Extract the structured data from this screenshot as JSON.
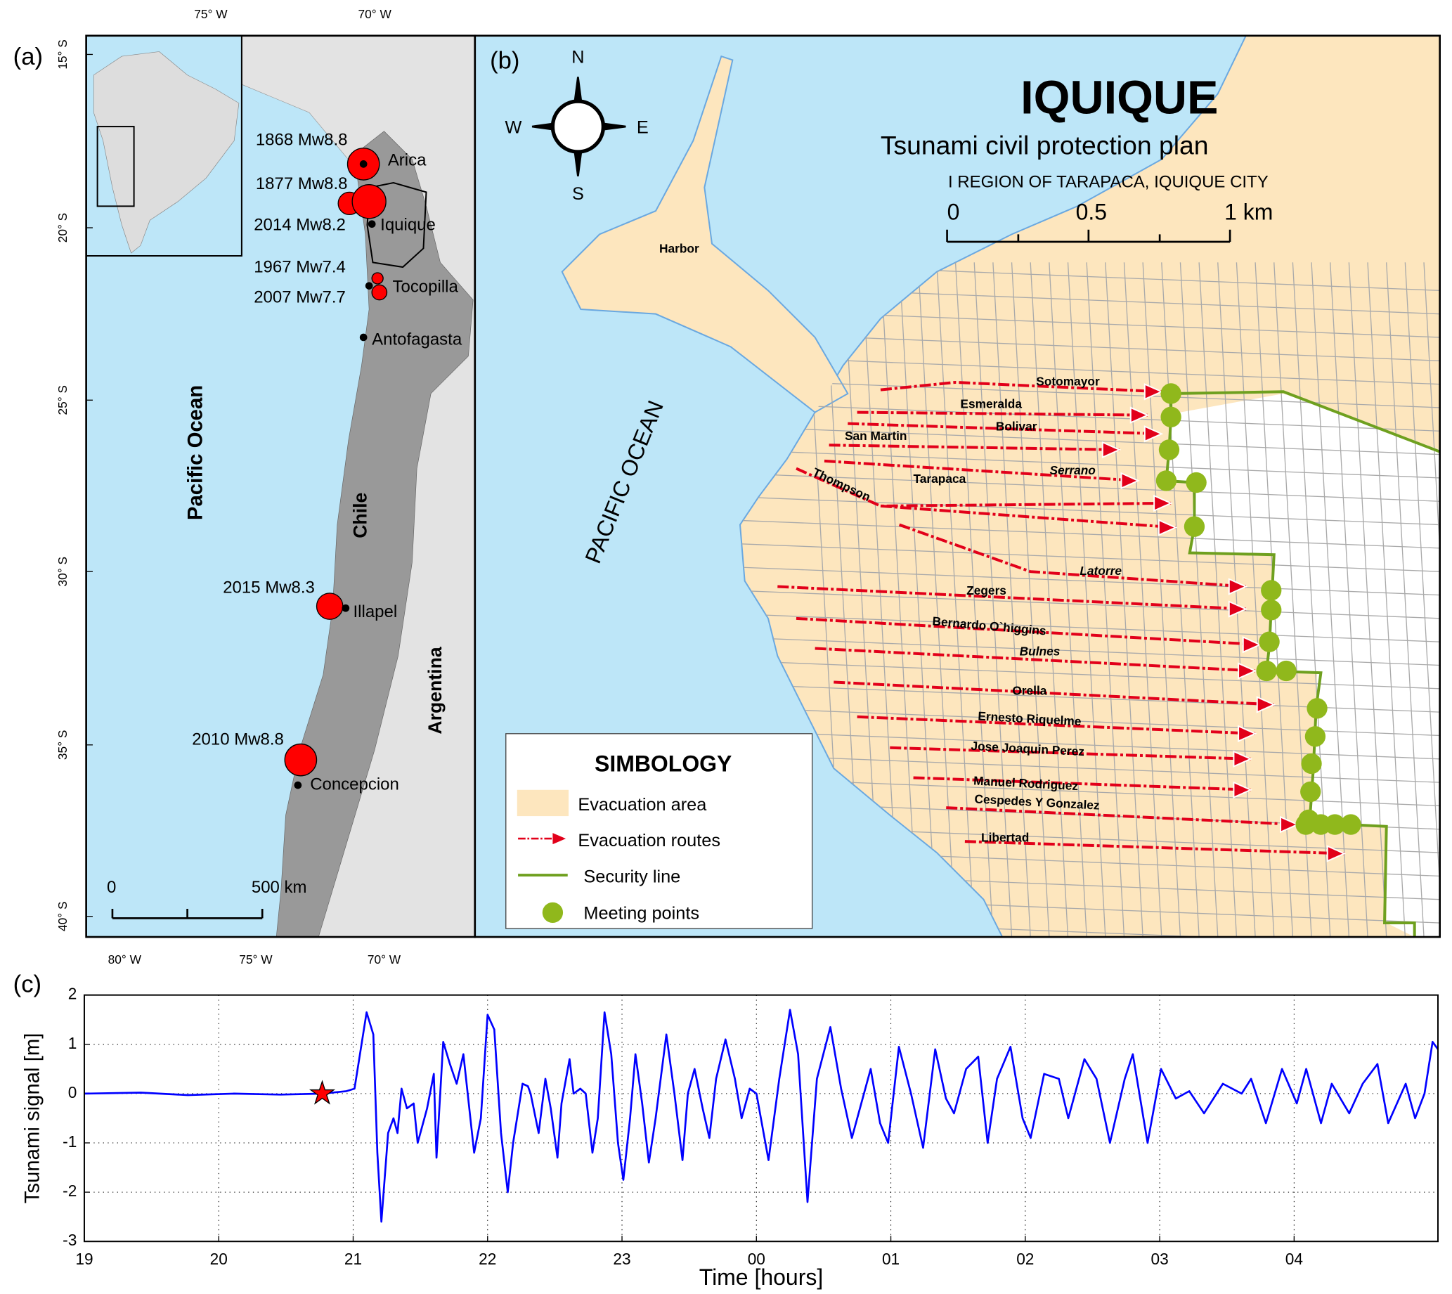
{
  "panel_a": {
    "label": "(a)",
    "lon_ticks_top": [
      "75° W",
      "70° W"
    ],
    "lon_ticks_bottom": [
      "80° W",
      "75° W",
      "70° W"
    ],
    "lat_ticks": [
      "15° S",
      "20° S",
      "25° S",
      "30° S",
      "35° S",
      "40° S"
    ],
    "ocean": "Pacific Ocean",
    "countries": [
      "Chile",
      "Argentina"
    ],
    "earthquakes": [
      "1868 Mw8.8",
      "1877 Mw8.8",
      "2014 Mw8.2",
      "1967 Mw7.4",
      "2007 Mw7.7",
      "2015 Mw8.3",
      "2010 Mw8.8"
    ],
    "cities": [
      "Arica",
      "Iquique",
      "Tocopilla",
      "Antofagasta",
      "Illapel",
      "Concepcion"
    ],
    "scale": [
      "0",
      "500 km"
    ]
  },
  "panel_b": {
    "label": "(b)",
    "compass": [
      "N",
      "E",
      "S",
      "W"
    ],
    "title": "IQUIQUE",
    "subtitle": "Tsunami civil protection plan",
    "region": "I REGION OF TARAPACA, IQUIQUE CITY",
    "scale": [
      "0",
      "0.5",
      "1 km"
    ],
    "harbor": "Harbor",
    "ocean": "PACIFIC OCEAN",
    "streets": [
      "Sotomayor",
      "Esmeralda",
      "Bolivar",
      "San Martin",
      "Serrano",
      "Tarapaca",
      "Thompson",
      "Latorre",
      "Zegers",
      "Bernardo O`higgins",
      "Bulnes",
      "Orella",
      "Ernesto Riquelme",
      "Jose Joaquin Perez",
      "Manuel Rodriguez",
      "Cespedes Y Gonzalez",
      "Libertad"
    ],
    "legend": {
      "title": "SIMBOLOGY",
      "items": [
        "Evacuation area",
        "Evacuation routes",
        "Security line",
        "Meeting points"
      ]
    }
  },
  "panel_c": {
    "label": "(c)"
  },
  "chart_data": {
    "type": "line",
    "x_label": "Time [hours]",
    "y_label": "Tsunami signal [m]",
    "color": "#0000ff",
    "grid": true,
    "xlim": [
      19,
      29.07
    ],
    "xticks": [
      19,
      20,
      21,
      22,
      23,
      {
        "value": 24,
        "label": "00"
      },
      {
        "value": 25,
        "label": "01"
      },
      {
        "value": 26,
        "label": "02"
      },
      {
        "value": 27,
        "label": "03"
      },
      {
        "value": 28,
        "label": "04"
      }
    ],
    "ylim": [
      -3,
      2
    ],
    "yticks": [
      -3,
      -2,
      -1,
      0,
      1,
      2
    ],
    "event_marker": {
      "x": 20.77,
      "y": 0,
      "color": "#ff0000"
    },
    "x": [
      19.0,
      19.42,
      19.77,
      20.11,
      20.46,
      20.77,
      20.95,
      21.01,
      21.1,
      21.15,
      21.18,
      21.21,
      21.26,
      21.3,
      21.33,
      21.36,
      21.4,
      21.45,
      21.48,
      21.55,
      21.6,
      21.62,
      21.67,
      21.72,
      21.77,
      21.82,
      21.86,
      21.9,
      21.95,
      22.0,
      22.05,
      22.1,
      22.15,
      22.19,
      22.26,
      22.3,
      22.32,
      22.38,
      22.43,
      22.47,
      22.52,
      22.55,
      22.61,
      22.64,
      22.69,
      22.73,
      22.78,
      22.82,
      22.87,
      22.92,
      22.97,
      23.01,
      23.06,
      23.1,
      23.15,
      23.2,
      23.25,
      23.33,
      23.39,
      23.45,
      23.49,
      23.54,
      23.6,
      23.65,
      23.7,
      23.77,
      23.84,
      23.89,
      23.95,
      24.0,
      24.09,
      24.17,
      24.25,
      24.31,
      24.38,
      24.45,
      24.55,
      24.63,
      24.71,
      24.8,
      24.85,
      24.92,
      24.98,
      25.06,
      25.15,
      25.24,
      25.33,
      25.41,
      25.47,
      25.56,
      25.65,
      25.72,
      25.79,
      25.89,
      25.98,
      26.04,
      26.14,
      26.25,
      26.32,
      26.44,
      26.53,
      26.63,
      26.74,
      26.8,
      26.91,
      27.01,
      27.12,
      27.22,
      27.33,
      27.47,
      27.61,
      27.68,
      27.79,
      27.91,
      28.02,
      28.09,
      28.2,
      28.28,
      28.41,
      28.51,
      28.62,
      28.7,
      28.83,
      28.9,
      28.97,
      29.03,
      29.07
    ],
    "values": [
      0.0,
      0.02,
      -0.03,
      0.0,
      -0.02,
      0.0,
      0.05,
      0.1,
      1.65,
      1.2,
      -1.2,
      -2.6,
      -0.8,
      -0.5,
      -0.8,
      0.1,
      -0.3,
      -0.2,
      -1.0,
      -0.3,
      0.4,
      -1.3,
      1.05,
      0.6,
      0.2,
      0.8,
      -0.2,
      -1.2,
      -0.5,
      1.6,
      1.3,
      -0.8,
      -2.0,
      -1.0,
      0.2,
      0.15,
      0.0,
      -0.8,
      0.3,
      -0.3,
      -1.3,
      -0.2,
      0.7,
      0.0,
      0.1,
      0.0,
      -1.2,
      -0.5,
      1.65,
      0.8,
      -1.0,
      -1.75,
      -0.5,
      0.8,
      -0.2,
      -1.4,
      -0.5,
      1.2,
      0.0,
      -1.35,
      0.0,
      0.5,
      -0.3,
      -0.9,
      0.3,
      1.1,
      0.3,
      -0.5,
      0.1,
      0.0,
      -1.35,
      0.3,
      1.7,
      0.8,
      -2.2,
      0.3,
      1.35,
      0.1,
      -0.9,
      0.0,
      0.5,
      -0.6,
      -1.0,
      0.95,
      0.0,
      -1.1,
      0.9,
      -0.1,
      -0.4,
      0.5,
      0.75,
      -1.0,
      0.3,
      0.95,
      -0.5,
      -0.9,
      0.4,
      0.3,
      -0.5,
      0.7,
      0.3,
      -1.0,
      0.3,
      0.8,
      -1.0,
      0.5,
      -0.1,
      0.05,
      -0.4,
      0.2,
      0.0,
      0.3,
      -0.6,
      0.5,
      -0.2,
      0.5,
      -0.6,
      0.2,
      -0.4,
      0.2,
      0.6,
      -0.6,
      0.2,
      -0.5,
      0.0,
      1.05,
      0.9
    ]
  }
}
